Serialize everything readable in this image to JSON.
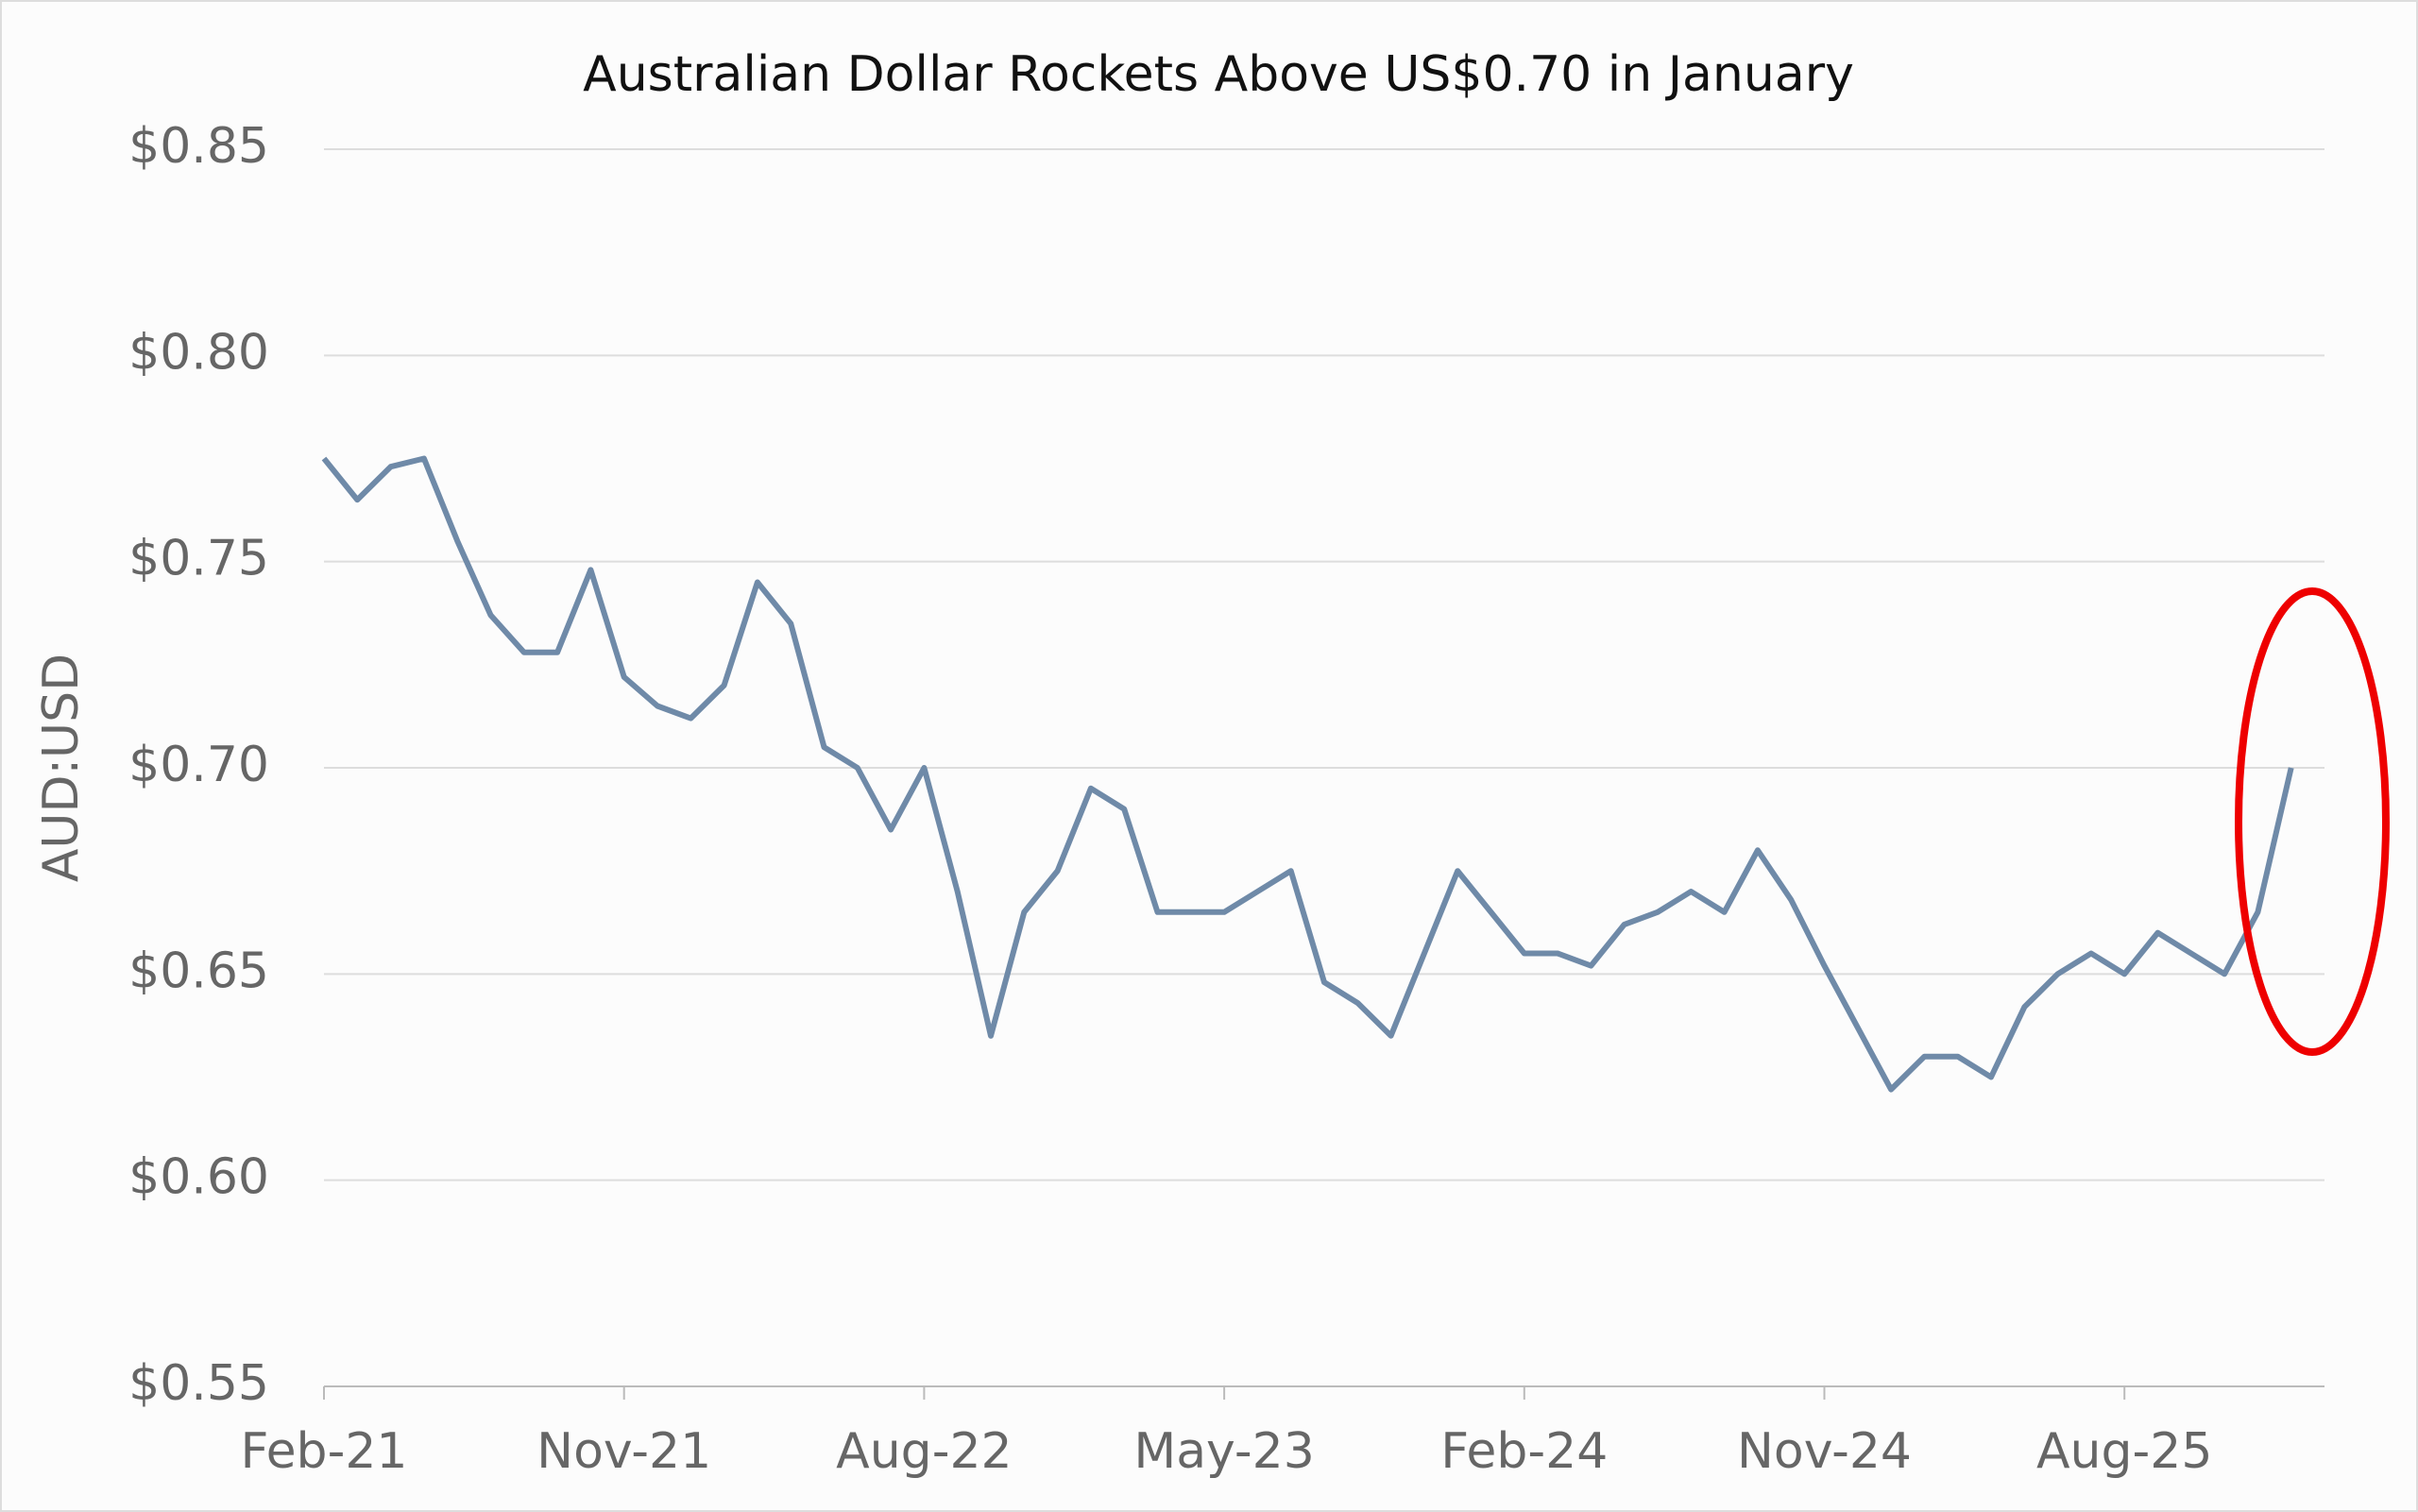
{
  "chart_data": {
    "type": "line",
    "title": "Australian Dollar Rockets Above US$0.70 in January",
    "y_label": "AUD:USD",
    "x": [
      "Feb-21",
      "Mar-21",
      "Apr-21",
      "May-21",
      "Jun-21",
      "Jul-21",
      "Aug-21",
      "Sep-21",
      "Oct-21",
      "Nov-21",
      "Dec-21",
      "Jan-22",
      "Feb-22",
      "Mar-22",
      "Apr-22",
      "May-22",
      "Jun-22",
      "Jul-22",
      "Aug-22",
      "Sep-22",
      "Oct-22",
      "Nov-22",
      "Dec-22",
      "Jan-23",
      "Feb-23",
      "Mar-23",
      "Apr-23",
      "May-23",
      "Jun-23",
      "Jul-23",
      "Aug-23",
      "Sep-23",
      "Oct-23",
      "Nov-23",
      "Dec-23",
      "Jan-24",
      "Feb-24",
      "Mar-24",
      "Apr-24",
      "May-24",
      "Jun-24",
      "Jul-24",
      "Aug-24",
      "Sep-24",
      "Oct-24",
      "Nov-24",
      "Dec-24",
      "Jan-25",
      "Feb-25",
      "Mar-25",
      "Apr-25",
      "May-25",
      "Jun-25",
      "Jul-25",
      "Aug-25",
      "Sep-25",
      "Oct-25",
      "Nov-25",
      "Dec-25",
      "Jan-26"
    ],
    "series": [
      {
        "name": "AUD:USD",
        "color": "#6f8aa8",
        "values": [
          0.775,
          0.765,
          0.773,
          0.775,
          0.755,
          0.737,
          0.728,
          0.728,
          0.748,
          0.722,
          0.715,
          0.712,
          0.72,
          0.745,
          0.735,
          0.705,
          0.7,
          0.685,
          0.7,
          0.67,
          0.635,
          0.665,
          0.675,
          0.695,
          0.69,
          0.665,
          0.665,
          0.665,
          0.67,
          0.675,
          0.648,
          0.643,
          0.635,
          0.655,
          0.675,
          0.665,
          0.655,
          0.655,
          0.652,
          0.662,
          0.665,
          0.67,
          0.665,
          0.68,
          0.668,
          0.652,
          0.637,
          0.622,
          0.63,
          0.63,
          0.625,
          0.642,
          0.65,
          0.655,
          0.65,
          0.66,
          0.655,
          0.65,
          0.665,
          0.7
        ]
      }
    ],
    "xticks": [
      "Feb-21",
      "Nov-21",
      "Aug-22",
      "May-23",
      "Feb-24",
      "Nov-24",
      "Aug-25"
    ],
    "ylim": [
      0.55,
      0.85
    ],
    "yticks": [
      {
        "value": 0.55,
        "label": "$0.55"
      },
      {
        "value": 0.6,
        "label": "$0.60"
      },
      {
        "value": 0.65,
        "label": "$0.65"
      },
      {
        "value": 0.7,
        "label": "$0.70"
      },
      {
        "value": 0.75,
        "label": "$0.75"
      },
      {
        "value": 0.8,
        "label": "$0.80"
      },
      {
        "value": 0.85,
        "label": "$0.85"
      }
    ],
    "grid": true
  }
}
